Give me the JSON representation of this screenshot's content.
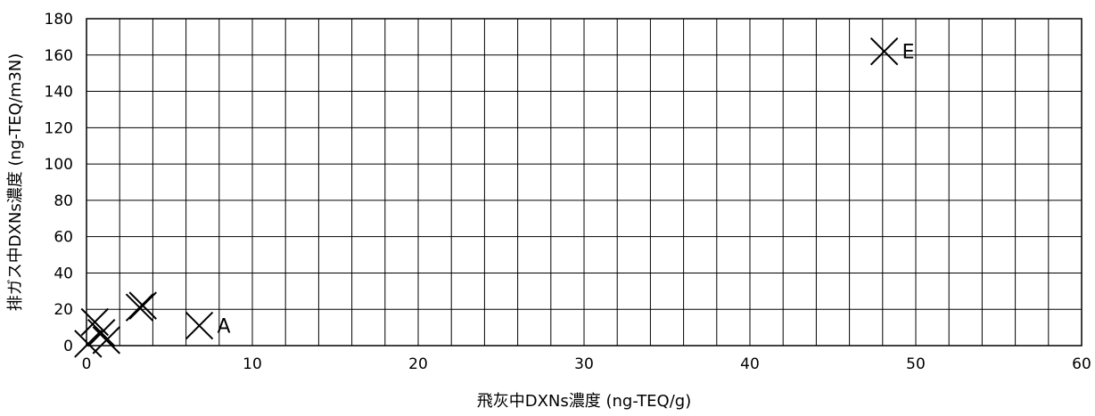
{
  "chart_data": {
    "type": "scatter",
    "title": "",
    "xlabel": "飛灰中DXNs濃度 (ng-TEQ/g)",
    "ylabel": "排ガス中DXNs濃度 (ng-TEQ/m3N)",
    "xlim": [
      0,
      60
    ],
    "ylim": [
      0,
      180
    ],
    "x_ticks": [
      0,
      10,
      20,
      30,
      40,
      50,
      60
    ],
    "y_ticks": [
      0,
      20,
      40,
      60,
      80,
      100,
      120,
      140,
      160,
      180
    ],
    "x_tick_labels": [
      "0",
      "10",
      "20",
      "30",
      "40",
      "50",
      "60"
    ],
    "y_tick_labels": [
      "0",
      "20",
      "40",
      "60",
      "80",
      "100",
      "120",
      "140",
      "160",
      "180"
    ],
    "x_minor_step": 2,
    "y_minor_step": 20,
    "grid": true,
    "marker": "x",
    "series": [
      {
        "points": [
          {
            "x": 0.1,
            "y": 1,
            "label": ""
          },
          {
            "x": 0.5,
            "y": 13,
            "label": ""
          },
          {
            "x": 0.9,
            "y": 7,
            "label": ""
          },
          {
            "x": 1.2,
            "y": 3,
            "label": ""
          },
          {
            "x": 3.2,
            "y": 21,
            "label": ""
          },
          {
            "x": 3.4,
            "y": 22,
            "label": ""
          },
          {
            "x": 6.8,
            "y": 11,
            "label": "A"
          },
          {
            "x": 48.1,
            "y": 162,
            "label": "E"
          }
        ]
      }
    ]
  }
}
